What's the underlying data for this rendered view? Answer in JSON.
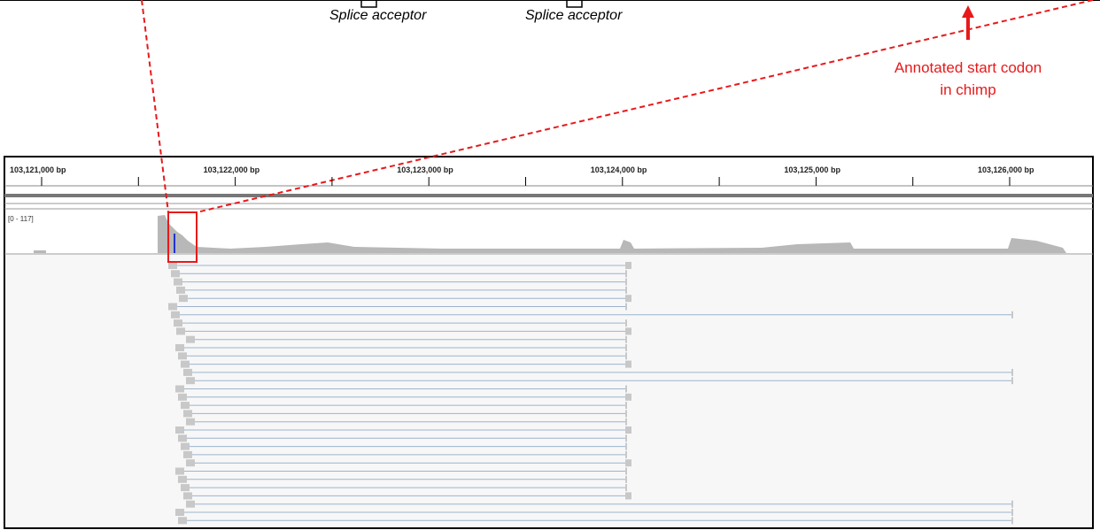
{
  "callouts": [
    "Splice acceptor",
    "Splice acceptor"
  ],
  "annotation": "Annotated start codon in chimp",
  "ruler": [
    "103,121,000 bp",
    "103,122,000 bp",
    "103,123,000 bp",
    "103,124,000 bp",
    "103,125,000 bp",
    "103,126,000 bp"
  ],
  "coverage_range": "[0 - 117]"
}
